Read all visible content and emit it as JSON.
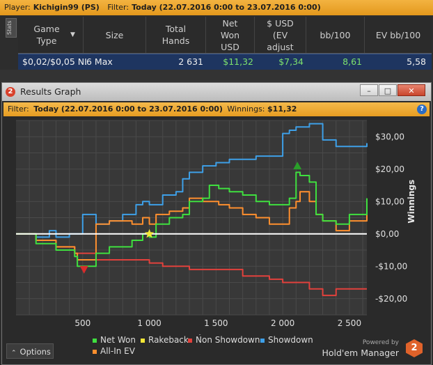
{
  "top_bar": {
    "player_label": "Player:",
    "player_name": "Kichigin99 (PS)",
    "filter_label": "Filter:",
    "filter_value": "Today (22.07.2016 0:00 to 23.07.2016 0:00)"
  },
  "stats_tab": "Stats",
  "table": {
    "headers": [
      "Game Type",
      "Size",
      "Total Hands",
      "Net Won USD",
      "$ USD (EV adjust",
      "bb/100",
      "EV bb/100"
    ],
    "sort_icon": "dropdown-arrow-icon",
    "row": {
      "game_type": "$0,02/$0,05 NL",
      "size": "6 Max",
      "total_hands": "2 631",
      "net_won": "$11,32",
      "ev_usd": "$7,34",
      "bb100": "8,61",
      "ev_bb100": "5,58"
    }
  },
  "window": {
    "title": "Results Graph",
    "icon_label": "2",
    "buttons": {
      "minimize": "–",
      "maximize": "□",
      "close": "✕"
    }
  },
  "filter_bar": {
    "label": "Filter:",
    "value": "Today (22.07.2016 0:00 to 23.07.2016 0:00)",
    "winnings_label": "Winnings:",
    "winnings_value": "$11,32",
    "help": "?"
  },
  "chart_data": {
    "type": "line",
    "xlabel": "Hands",
    "ylabel": "Winnings",
    "xlim": [
      0,
      2631
    ],
    "ylim": [
      -25,
      35
    ],
    "xticks": [
      500,
      1000,
      1500,
      2000,
      2500
    ],
    "xtick_labels": [
      "500",
      "1 000",
      "1 500",
      "2 000",
      "2 500"
    ],
    "yticks": [
      30,
      20,
      10,
      0,
      -10,
      -20
    ],
    "ytick_labels": [
      "$30,00",
      "$20,00",
      "$10,00",
      "$0,00",
      "-$10,00",
      "-$20,00"
    ],
    "grid": true,
    "legend_position": "bottom",
    "series": [
      {
        "name": "Net Won",
        "color": "#3fe03f",
        "x": [
          0,
          150,
          300,
          440,
          460,
          600,
          700,
          870,
          950,
          1000,
          1050,
          1150,
          1250,
          1300,
          1400,
          1450,
          1520,
          1600,
          1700,
          1800,
          1900,
          2050,
          2100,
          2130,
          2200,
          2250,
          2300,
          2400,
          2500,
          2631
        ],
        "y": [
          0,
          -3,
          -5,
          -7,
          -10,
          -6,
          -4,
          -2,
          0,
          -1,
          3,
          5,
          6,
          10,
          11,
          15,
          14,
          13,
          12,
          10,
          9,
          11,
          19,
          18,
          16,
          6,
          4,
          3,
          6,
          11
        ]
      },
      {
        "name": "All-In EV",
        "color": "#ff8f2e",
        "x": [
          0,
          150,
          300,
          440,
          460,
          600,
          700,
          870,
          950,
          1000,
          1050,
          1150,
          1250,
          1300,
          1400,
          1450,
          1520,
          1600,
          1700,
          1800,
          1900,
          2050,
          2100,
          2130,
          2200,
          2250,
          2300,
          2400,
          2500,
          2631
        ],
        "y": [
          0,
          -2,
          -4,
          -6,
          -8,
          3,
          4,
          3,
          5,
          3,
          6,
          7,
          8,
          11,
          10,
          10,
          9,
          8,
          6,
          5,
          3,
          8,
          10,
          13,
          10,
          6,
          4,
          1,
          4,
          7
        ]
      },
      {
        "name": "Showdown",
        "color": "#3ea0e8",
        "x": [
          0,
          150,
          250,
          300,
          400,
          500,
          600,
          700,
          800,
          900,
          950,
          1000,
          1100,
          1200,
          1250,
          1300,
          1400,
          1500,
          1600,
          1700,
          1800,
          1900,
          2000,
          2050,
          2100,
          2200,
          2300,
          2400,
          2500,
          2631
        ],
        "y": [
          0,
          -1,
          1,
          -1,
          0,
          6,
          3,
          4,
          6,
          9,
          10,
          9,
          12,
          13,
          17,
          19,
          21,
          22,
          23,
          23,
          24,
          24,
          31,
          32,
          33,
          34,
          29,
          27,
          27,
          28
        ]
      },
      {
        "name": "Non Showdown",
        "color": "#e2413c",
        "x": [
          0,
          150,
          300,
          440,
          600,
          700,
          870,
          1000,
          1100,
          1200,
          1300,
          1400,
          1500,
          1600,
          1700,
          1800,
          1900,
          2000,
          2100,
          2200,
          2300,
          2400,
          2500,
          2631
        ],
        "y": [
          0,
          -2,
          -4,
          -6,
          -8,
          -8,
          -8,
          -9,
          -10,
          -10,
          -11,
          -11,
          -11,
          -11,
          -13,
          -13,
          -14,
          -15,
          -15,
          -17,
          -19,
          -17,
          -17,
          -17
        ]
      },
      {
        "name": "Rakeback",
        "color": "#f3e636",
        "x": [],
        "y": []
      }
    ],
    "markers": [
      {
        "type": "max",
        "shape": "triangle-up",
        "color": "#2aa02a",
        "x": 2110,
        "y": 21
      },
      {
        "type": "min",
        "shape": "triangle-down",
        "color": "#d82b2b",
        "x": 510,
        "y": -11
      },
      {
        "type": "star",
        "shape": "star",
        "color": "#f3e636",
        "x": 1000,
        "y": 0
      }
    ]
  },
  "legend": {
    "items": [
      {
        "label": "Net Won",
        "color": "#3fe03f"
      },
      {
        "label": "Rakeback",
        "color": "#f3e636"
      },
      {
        "label": "Non Showdown",
        "color": "#e2413c"
      },
      {
        "label": "Showdown",
        "color": "#3ea0e8"
      },
      {
        "label": "All-In EV",
        "color": "#ff8f2e"
      }
    ]
  },
  "options_button": {
    "label": "Options",
    "icon": "chevron-up-icon"
  },
  "brand": {
    "powered": "Powered by",
    "name": "Hold'em Manager",
    "logo": "2"
  }
}
